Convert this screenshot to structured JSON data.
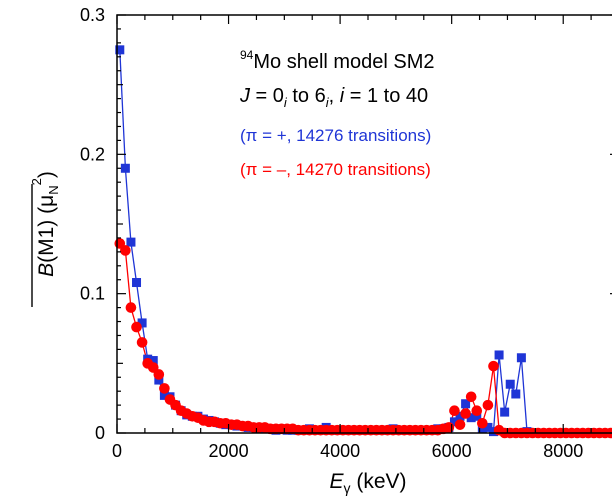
{
  "chart_data": {
    "type": "scatter",
    "title": "",
    "xlabel": {
      "main": "E",
      "sub": "γ",
      "unit": " (keV)"
    },
    "ylabel": {
      "main": "B",
      "rest": "(M1)",
      "unit_open": " (μ",
      "unit_sub": "N",
      "unit_sup": "2",
      "unit_close": ")"
    },
    "xlim": [
      0,
      9000
    ],
    "ylim": [
      0,
      0.3
    ],
    "x_ticks": [
      0,
      2000,
      4000,
      6000,
      8000
    ],
    "x_tick_labels": [
      "0",
      "2000",
      "4000",
      "6000",
      "8000"
    ],
    "y_ticks": [
      0,
      0.1,
      0.2,
      0.3
    ],
    "y_tick_labels": [
      "0",
      "0.1",
      "0.2",
      "0.3"
    ],
    "grid": false,
    "annotations": {
      "line1": {
        "sup": "94",
        "text": "Mo shell model SM2"
      },
      "line2": {
        "J": "J",
        "eq": " = 0",
        "i1": "i",
        "to": " to 6",
        "i2": "i",
        "comma": ", ",
        "i": "i",
        "range": " = 1 to 40"
      },
      "line3": "(π = +, 14276 transitions)",
      "line4": "(π = –, 14270 transitions)"
    },
    "colors": {
      "pos": "#1f35d6",
      "neg": "#ff0000"
    },
    "series": [
      {
        "name": "(π = +, 14276 transitions)",
        "marker": "square",
        "color": "#1f35d6",
        "x": [
          50,
          150,
          250,
          350,
          450,
          550,
          650,
          750,
          850,
          950,
          1050,
          1150,
          1250,
          1350,
          1450,
          1550,
          1650,
          1750,
          1850,
          1950,
          2050,
          2150,
          2250,
          2350,
          2450,
          2550,
          2650,
          2750,
          2850,
          2950,
          3050,
          3150,
          3250,
          3350,
          3450,
          3550,
          3650,
          3750,
          3850,
          3950,
          4050,
          4150,
          4250,
          4350,
          4450,
          4550,
          4650,
          4750,
          4850,
          4950,
          5050,
          5150,
          5250,
          5350,
          5450,
          5550,
          5650,
          5750,
          5850,
          5950,
          6050,
          6150,
          6250,
          6350,
          6450,
          6550,
          6650,
          6750,
          6850,
          6950,
          7050,
          7150,
          7250,
          7350,
          7450,
          7550,
          7650,
          7750,
          7850,
          7950,
          8050,
          8150,
          8250,
          8350,
          8450,
          8550,
          8650,
          8750,
          8850,
          8950
        ],
        "y": [
          0.275,
          0.19,
          0.137,
          0.108,
          0.079,
          0.053,
          0.052,
          0.038,
          0.027,
          0.026,
          0.02,
          0.016,
          0.013,
          0.012,
          0.012,
          0.01,
          0.009,
          0.008,
          0.007,
          0.006,
          0.006,
          0.005,
          0.005,
          0.004,
          0.004,
          0.003,
          0.003,
          0.003,
          0.002,
          0.003,
          0.002,
          0.002,
          0.002,
          0.002,
          0.003,
          0.002,
          0.002,
          0.004,
          0.002,
          0.002,
          0.002,
          0.002,
          0.002,
          0.002,
          0.002,
          0.002,
          0.002,
          0.002,
          0.002,
          0.003,
          0.002,
          0.002,
          0.002,
          0.002,
          0.002,
          0.002,
          0.002,
          0.003,
          0.003,
          0.004,
          0.008,
          0.012,
          0.021,
          0.011,
          0.012,
          0.003,
          0.004,
          0.001,
          0.056,
          0.015,
          0.035,
          0.028,
          0.054,
          0.001,
          0,
          0,
          0,
          0,
          0,
          0,
          0,
          0,
          0,
          0,
          0,
          0,
          0,
          0,
          0,
          0
        ]
      },
      {
        "name": "(π = –, 14270 transitions)",
        "marker": "circle",
        "color": "#ff0000",
        "x": [
          50,
          150,
          250,
          350,
          450,
          550,
          650,
          750,
          850,
          950,
          1050,
          1150,
          1250,
          1350,
          1450,
          1550,
          1650,
          1750,
          1850,
          1950,
          2050,
          2150,
          2250,
          2350,
          2450,
          2550,
          2650,
          2750,
          2850,
          2950,
          3050,
          3150,
          3250,
          3350,
          3450,
          3550,
          3650,
          3750,
          3850,
          3950,
          4050,
          4150,
          4250,
          4350,
          4450,
          4550,
          4650,
          4750,
          4850,
          4950,
          5050,
          5150,
          5250,
          5350,
          5450,
          5550,
          5650,
          5750,
          5850,
          5950,
          6050,
          6150,
          6250,
          6350,
          6450,
          6550,
          6650,
          6750,
          6850,
          6950,
          7050,
          7150,
          7250,
          7350,
          7450,
          7550,
          7650,
          7750,
          7850,
          7950,
          8050,
          8150,
          8250,
          8350,
          8450,
          8550,
          8650,
          8750,
          8850,
          8950
        ],
        "y": [
          0.136,
          0.131,
          0.09,
          0.076,
          0.065,
          0.05,
          0.047,
          0.042,
          0.032,
          0.024,
          0.02,
          0.016,
          0.014,
          0.012,
          0.011,
          0.009,
          0.008,
          0.008,
          0.007,
          0.007,
          0.006,
          0.006,
          0.005,
          0.005,
          0.004,
          0.004,
          0.004,
          0.003,
          0.003,
          0.003,
          0.003,
          0.003,
          0.002,
          0.002,
          0.002,
          0.002,
          0.002,
          0.002,
          0.002,
          0.002,
          0.002,
          0.002,
          0.002,
          0.002,
          0.002,
          0.002,
          0.002,
          0.002,
          0.002,
          0.002,
          0.002,
          0.002,
          0.002,
          0.002,
          0.002,
          0.002,
          0.002,
          0.002,
          0.003,
          0.004,
          0.016,
          0.006,
          0.014,
          0.026,
          0.016,
          0.007,
          0.02,
          0.048,
          0.002,
          0,
          0,
          0,
          0,
          0,
          0,
          0,
          0,
          0,
          0,
          0,
          0,
          0,
          0,
          0,
          0,
          0,
          0,
          0,
          0,
          0
        ]
      }
    ]
  }
}
